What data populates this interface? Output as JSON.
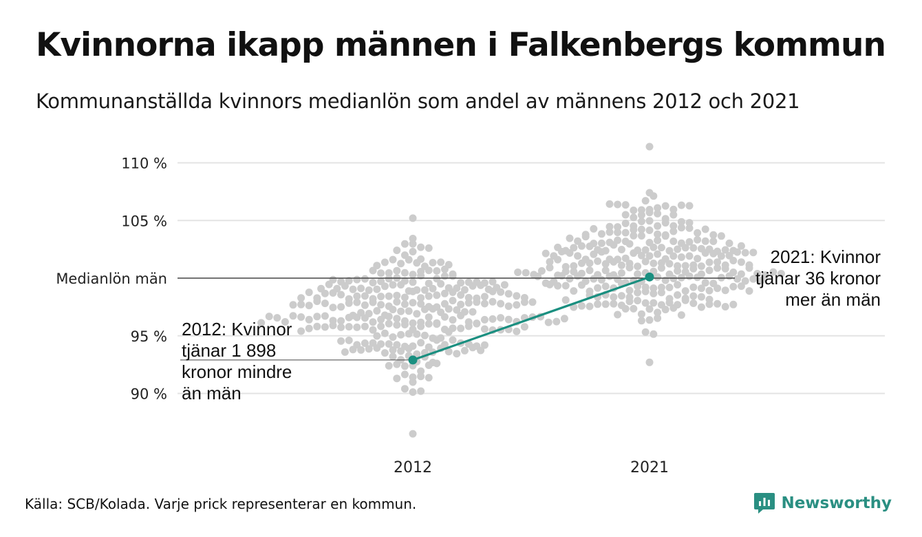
{
  "title": "Kvinnorna ikapp männen i Falkenbergs kommun",
  "subtitle": "Kommunanställda kvinnors medianlön som andel av männens 2012 och 2021",
  "source": "Källa: SCB/Kolada. Varje prick representerar en kommun.",
  "brand": {
    "name": "Newsworthy",
    "icon": "newsworthy-chart-bubble-icon",
    "color": "#2a8f82"
  },
  "colors": {
    "dots": "#cccccc",
    "highlight": "#1a8f80",
    "grid": "#e3e3e3",
    "reference": "#444444"
  },
  "annotations": {
    "left": [
      "2012: Kvinnor",
      "tjänar 1 898",
      "kronor mindre",
      "än män"
    ],
    "right": [
      "2021: Kvinnor",
      "tjänar 36 kronor",
      "mer än män"
    ]
  },
  "chart_data": {
    "type": "scatter",
    "subtype": "beeswarm",
    "title": "Kvinnorna ikapp männen i Falkenbergs kommun",
    "subtitle": "Kommunanställda kvinnors medianlön som andel av männens 2012 och 2021",
    "x_categories": [
      "2012",
      "2021"
    ],
    "y_ticks": [
      {
        "value": 110,
        "label": "110 %"
      },
      {
        "value": 105,
        "label": "105 %"
      },
      {
        "value": 100,
        "label": "Medianlön män"
      },
      {
        "value": 95,
        "label": "95 %"
      },
      {
        "value": 90,
        "label": "90 %"
      }
    ],
    "ylim": [
      86,
      112
    ],
    "grid": true,
    "reference_line": {
      "value": 100,
      "label": "Medianlön män"
    },
    "swarm": {
      "2012": {
        "count": 290,
        "median": 97.0,
        "spread": 2.6,
        "min": 86.5,
        "max": 105.2
      },
      "2021": {
        "count": 290,
        "median": 101.2,
        "spread": 2.4,
        "min": 92.7,
        "max": 111.4
      }
    },
    "highlight": {
      "name": "Falkenberg",
      "points": [
        {
          "x": "2012",
          "y": 92.9
        },
        {
          "x": "2021",
          "y": 100.1
        }
      ]
    }
  }
}
